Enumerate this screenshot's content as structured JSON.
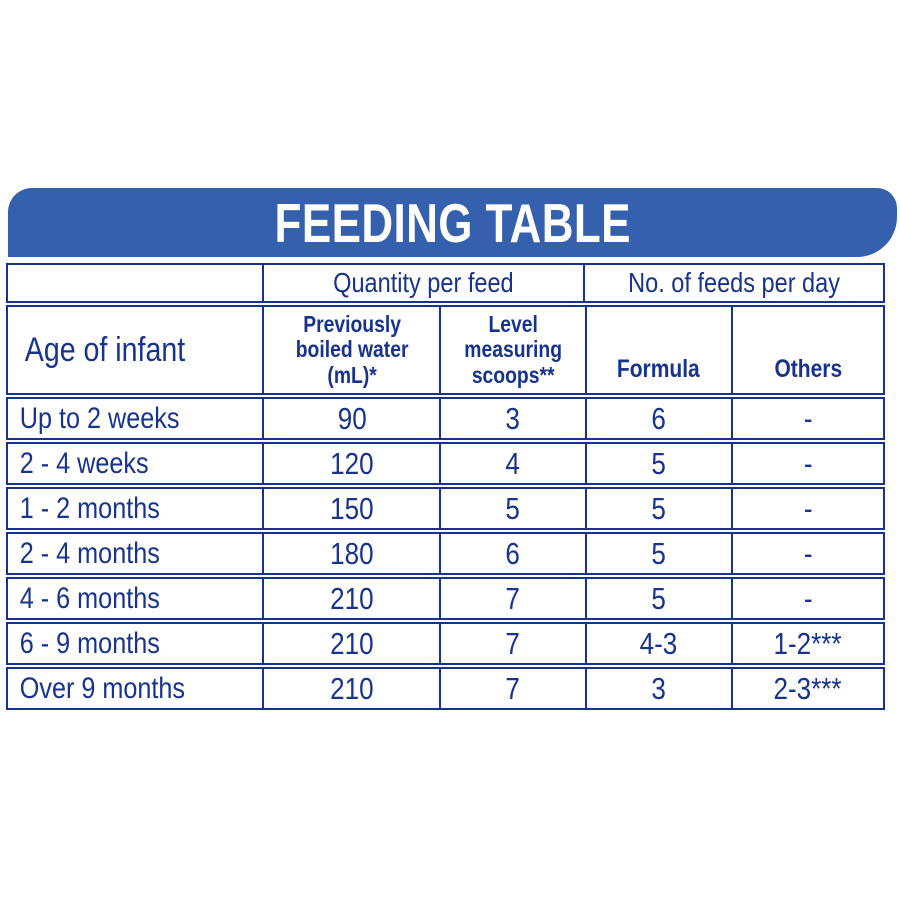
{
  "title": "FEEDING TABLE",
  "colors": {
    "banner_blue": "#3560AD",
    "navy_text_and_borders": "#17338E",
    "background": "#FFFFFF",
    "title_text": "#FFFFFF"
  },
  "table": {
    "group_headers": {
      "spacer": "",
      "quantity": "Quantity per feed",
      "feeds": "No. of feeds per day"
    },
    "column_headers": {
      "age": "Age of infant",
      "water_line1": "Previously",
      "water_line2": "boiled water",
      "water_line3": "(mL)*",
      "scoops_line1": "Level",
      "scoops_line2": "measuring",
      "scoops_line3": "scoops**",
      "formula": "Formula",
      "others": "Others"
    },
    "rows": [
      {
        "cells": [
          "Up to 2 weeks",
          "90",
          "3",
          "6",
          "-"
        ]
      },
      {
        "cells": [
          "2 - 4 weeks",
          "120",
          "4",
          "5",
          "-"
        ]
      },
      {
        "cells": [
          "1 - 2 months",
          "150",
          "5",
          "5",
          "-"
        ]
      },
      {
        "cells": [
          "2 - 4 months",
          "180",
          "6",
          "5",
          "-"
        ]
      },
      {
        "cells": [
          "4 - 6 months",
          "210",
          "7",
          "5",
          "-"
        ]
      },
      {
        "cells": [
          "6 - 9 months",
          "210",
          "7",
          "4-3",
          "1-2***"
        ]
      },
      {
        "cells": [
          "Over 9 months",
          "210",
          "7",
          "3",
          "2-3***"
        ]
      }
    ]
  },
  "chart_data": {
    "type": "table",
    "title": "FEEDING TABLE",
    "column_groups": [
      {
        "label": "",
        "span": 1
      },
      {
        "label": "Quantity per feed",
        "span": 2
      },
      {
        "label": "No. of feeds per day",
        "span": 2
      }
    ],
    "columns": [
      "Age of infant",
      "Previously boiled water (mL)*",
      "Level measuring scoops**",
      "Formula",
      "Others"
    ],
    "rows": [
      [
        "Up to 2 weeks",
        90,
        3,
        6,
        "-"
      ],
      [
        "2 - 4 weeks",
        120,
        4,
        5,
        "-"
      ],
      [
        "1 - 2 months",
        150,
        5,
        5,
        "-"
      ],
      [
        "2 - 4 months",
        180,
        6,
        5,
        "-"
      ],
      [
        "4 - 6 months",
        210,
        7,
        5,
        "-"
      ],
      [
        "6 - 9 months",
        210,
        7,
        "4-3",
        "1-2***"
      ],
      [
        "Over 9 months",
        210,
        7,
        3,
        "2-3***"
      ]
    ]
  }
}
